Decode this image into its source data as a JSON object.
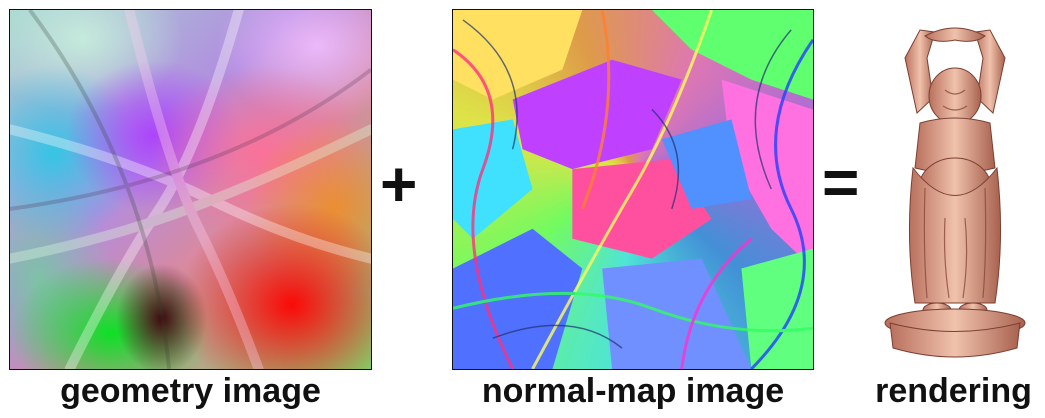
{
  "panels": [
    {
      "caption": "geometry image"
    },
    {
      "caption": "normal-map image"
    },
    {
      "caption": "rendering"
    }
  ],
  "operators": {
    "plus": "+",
    "equals": "="
  },
  "colors": {
    "rendering_skin": "#e8b29a",
    "rendering_shadow": "#9a5a48",
    "text": "#111111"
  }
}
